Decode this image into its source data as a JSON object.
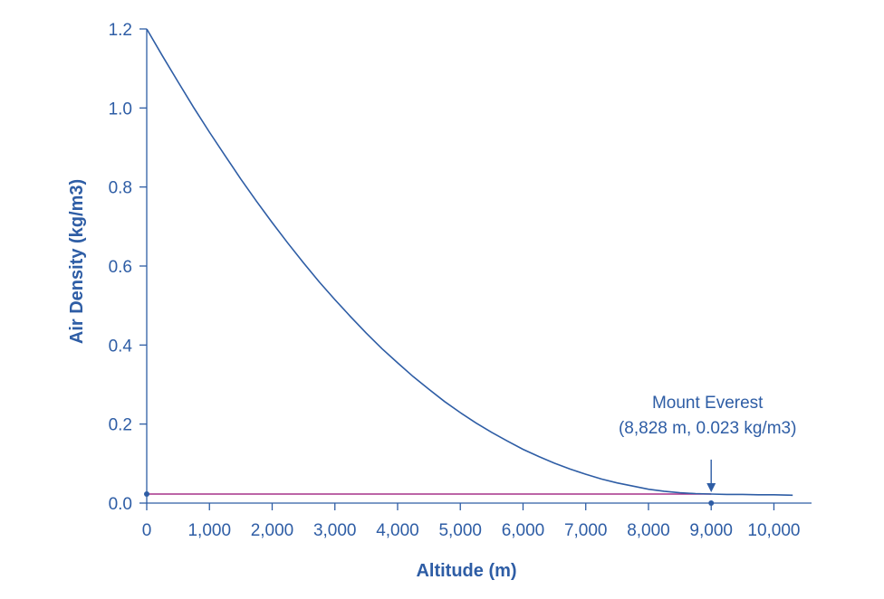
{
  "chart_data": {
    "type": "line",
    "title": "",
    "xlabel": "Altitude (m)",
    "ylabel": "Air Density (kg/m3)",
    "xlim": [
      0,
      10600
    ],
    "ylim": [
      0,
      1.2
    ],
    "x_ticks": [
      0,
      1000,
      2000,
      3000,
      4000,
      5000,
      6000,
      7000,
      8000,
      9000,
      10000
    ],
    "x_tick_labels": [
      "0",
      "1,000",
      "2,000",
      "3,000",
      "4,000",
      "5,000",
      "6,000",
      "7,000",
      "8,000",
      "9,000",
      "10,000"
    ],
    "y_ticks": [
      0,
      0.2,
      0.4,
      0.6,
      0.8,
      1.0,
      1.2
    ],
    "y_tick_labels": [
      "0.0",
      "0.2",
      "0.4",
      "0.6",
      "0.8",
      "1.0",
      "1.2"
    ],
    "grid": false,
    "series": [
      {
        "x": [
          0,
          250,
          500,
          750,
          1000,
          1250,
          1500,
          1750,
          2000,
          2250,
          2500,
          2750,
          3000,
          3250,
          3500,
          3750,
          4000,
          4250,
          4500,
          4750,
          5000,
          5250,
          5500,
          5750,
          6000,
          6250,
          6500,
          6750,
          7000,
          7250,
          7500,
          7750,
          8000,
          8250,
          8500,
          8750,
          9000,
          9250,
          9500,
          9750,
          10000,
          10300
        ],
        "y": [
          1.2,
          1.132,
          1.066,
          1.001,
          0.939,
          0.879,
          0.82,
          0.764,
          0.71,
          0.658,
          0.608,
          0.56,
          0.515,
          0.472,
          0.43,
          0.391,
          0.355,
          0.32,
          0.288,
          0.257,
          0.229,
          0.203,
          0.179,
          0.157,
          0.136,
          0.118,
          0.101,
          0.086,
          0.073,
          0.061,
          0.051,
          0.043,
          0.035,
          0.03,
          0.026,
          0.024,
          0.023,
          0.022,
          0.022,
          0.021,
          0.021,
          0.02
        ],
        "color": "#2e5da5"
      }
    ],
    "reference_line": {
      "y": 0.023,
      "x_start": 0,
      "x_end": 9000,
      "color": "#a5328a"
    },
    "annotation": {
      "line1": "Mount Everest",
      "line2": "(8,828 m, 0.023 kg/m3)",
      "x": 9000,
      "y": 0.023
    },
    "colors": {
      "axis": "#2e5da5",
      "text": "#2e5da5"
    }
  }
}
